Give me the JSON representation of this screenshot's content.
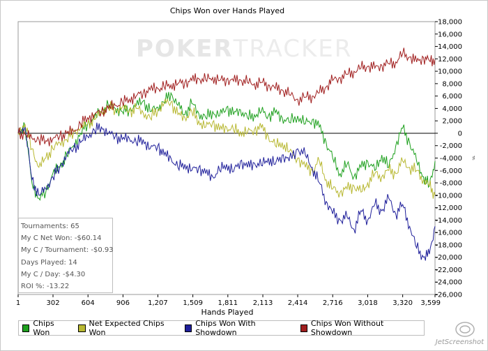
{
  "watermark": {
    "left": "POKER",
    "right": "TRACKER"
  },
  "chart_data": {
    "type": "line",
    "title": "Chips Won over Hands Played",
    "xlabel": "Hands Played",
    "ylabel": "",
    "xlim": [
      1,
      3599
    ],
    "ylim": [
      -26000,
      18000
    ],
    "x_ticks": [
      1,
      302,
      604,
      906,
      1207,
      1509,
      1811,
      2113,
      2414,
      2716,
      3018,
      3320,
      3599
    ],
    "x_tick_labels": [
      "1",
      "302",
      "604",
      "906",
      "1,207",
      "1,509",
      "1,811",
      "2,113",
      "2,414",
      "2,716",
      "3,018",
      "3,320",
      "3,599"
    ],
    "y_ticks": [
      18000,
      16000,
      14000,
      12000,
      10000,
      8000,
      6000,
      4000,
      2000,
      0,
      -2000,
      -4000,
      -6000,
      -8000,
      -10000,
      -12000,
      -14000,
      -16000,
      -18000,
      -20000,
      -22000,
      -24000,
      -26000
    ],
    "y_tick_labels": [
      "18,000",
      "16,000",
      "14,000",
      "12,000",
      "10,000",
      "8,000",
      "6,000",
      "4,000",
      "2,000",
      "0",
      "-2,000",
      "-4,000",
      "-6,000",
      "-8,000",
      "-10,000",
      "-12,000",
      "-14,000",
      "-16,000",
      "-18,000",
      "-20,000",
      "-22,000",
      "-24,000",
      "-26,000"
    ],
    "grid": false,
    "legend_position": "bottom",
    "series": [
      {
        "name": "Chips Won",
        "color": "#1ea01e",
        "x": [
          1,
          60,
          120,
          180,
          240,
          300,
          360,
          420,
          480,
          540,
          600,
          660,
          720,
          780,
          840,
          900,
          960,
          1020,
          1080,
          1140,
          1207,
          1260,
          1320,
          1380,
          1440,
          1500,
          1560,
          1620,
          1680,
          1740,
          1800,
          1860,
          1920,
          1980,
          2040,
          2100,
          2160,
          2220,
          2280,
          2340,
          2414,
          2480,
          2540,
          2600,
          2660,
          2716,
          2780,
          2840,
          2900,
          2960,
          3018,
          3080,
          3140,
          3200,
          3260,
          3320,
          3380,
          3440,
          3500,
          3550,
          3599
        ],
        "y": [
          0,
          1200,
          -8000,
          -10500,
          -9500,
          -6500,
          -5500,
          -3500,
          -2000,
          0,
          1500,
          2500,
          3500,
          4500,
          4000,
          3500,
          3800,
          4500,
          5200,
          3500,
          4200,
          5000,
          6500,
          4500,
          3000,
          4800,
          3200,
          2500,
          3500,
          2800,
          4200,
          3000,
          3800,
          2500,
          3000,
          3500,
          2800,
          3300,
          2500,
          1800,
          2800,
          1500,
          2200,
          1000,
          -1500,
          -4000,
          -6500,
          -5000,
          -7000,
          -5500,
          -4500,
          -6000,
          -3500,
          -5500,
          -2000,
          800,
          -1500,
          -4500,
          -7000,
          -8500,
          -4500
        ]
      },
      {
        "name": "Net Expected Chips Won",
        "color": "#b8b832",
        "x": [
          1,
          60,
          120,
          180,
          240,
          300,
          360,
          420,
          480,
          540,
          600,
          660,
          720,
          780,
          840,
          900,
          960,
          1020,
          1080,
          1140,
          1207,
          1260,
          1320,
          1380,
          1440,
          1500,
          1560,
          1620,
          1680,
          1740,
          1800,
          1860,
          1920,
          1980,
          2040,
          2100,
          2160,
          2220,
          2280,
          2340,
          2414,
          2480,
          2540,
          2600,
          2660,
          2716,
          2780,
          2840,
          2900,
          2960,
          3018,
          3080,
          3140,
          3200,
          3260,
          3320,
          3380,
          3440,
          3500,
          3550,
          3599
        ],
        "y": [
          0,
          1500,
          -2500,
          -5500,
          -4000,
          -2500,
          -1500,
          -1000,
          200,
          800,
          1500,
          2200,
          3500,
          4300,
          3800,
          4200,
          3500,
          4000,
          3300,
          2500,
          3800,
          4800,
          5000,
          3000,
          2500,
          3500,
          2000,
          1000,
          1800,
          500,
          1000,
          500,
          300,
          100,
          600,
          900,
          -500,
          -2000,
          -1500,
          -3000,
          -4000,
          -5500,
          -6000,
          -4500,
          -7500,
          -9000,
          -9500,
          -9000,
          -8500,
          -9500,
          -8000,
          -6500,
          -7000,
          -6000,
          -6500,
          -4500,
          -5500,
          -6000,
          -7500,
          -8500,
          -10000
        ]
      },
      {
        "name": "Chips Won With Showdown",
        "color": "#1f1f9a",
        "x": [
          1,
          60,
          120,
          180,
          240,
          300,
          360,
          420,
          480,
          540,
          600,
          660,
          720,
          780,
          840,
          900,
          960,
          1020,
          1080,
          1140,
          1207,
          1260,
          1320,
          1380,
          1440,
          1500,
          1560,
          1620,
          1680,
          1740,
          1800,
          1860,
          1920,
          1980,
          2040,
          2100,
          2160,
          2220,
          2280,
          2340,
          2414,
          2480,
          2540,
          2600,
          2660,
          2716,
          2780,
          2840,
          2900,
          2960,
          3018,
          3080,
          3140,
          3200,
          3260,
          3320,
          3380,
          3440,
          3500,
          3550,
          3599
        ],
        "y": [
          0,
          1000,
          -7500,
          -10000,
          -9000,
          -7000,
          -5500,
          -3500,
          -2500,
          -1500,
          -500,
          500,
          1000,
          0,
          -500,
          -1000,
          -800,
          -1500,
          -1000,
          -2500,
          -2000,
          -3500,
          -4000,
          -5500,
          -5000,
          -6000,
          -5500,
          -6500,
          -7000,
          -6000,
          -5000,
          -6200,
          -4500,
          -5500,
          -4800,
          -5200,
          -4000,
          -5000,
          -3500,
          -4500,
          -2500,
          -3500,
          -5500,
          -8000,
          -11000,
          -13000,
          -14000,
          -13500,
          -15500,
          -12500,
          -14000,
          -11500,
          -12500,
          -10500,
          -13000,
          -11500,
          -15000,
          -18500,
          -20000,
          -19500,
          -15000
        ]
      },
      {
        "name": "Chips Won Without Showdown",
        "color": "#a01e1e",
        "x": [
          1,
          60,
          120,
          180,
          240,
          300,
          360,
          420,
          480,
          540,
          600,
          660,
          720,
          780,
          840,
          900,
          960,
          1020,
          1080,
          1140,
          1207,
          1260,
          1320,
          1380,
          1440,
          1500,
          1560,
          1620,
          1680,
          1740,
          1800,
          1860,
          1920,
          1980,
          2040,
          2100,
          2160,
          2220,
          2280,
          2340,
          2414,
          2480,
          2540,
          2600,
          2660,
          2716,
          2780,
          2840,
          2900,
          2960,
          3018,
          3080,
          3140,
          3200,
          3260,
          3320,
          3380,
          3440,
          3500,
          3550,
          3599
        ],
        "y": [
          0,
          -200,
          -800,
          -1000,
          -1200,
          -900,
          -500,
          0,
          300,
          1500,
          2500,
          3000,
          3500,
          4000,
          4500,
          5000,
          5500,
          6000,
          6500,
          7000,
          7200,
          7500,
          7800,
          8000,
          8200,
          8500,
          8800,
          8600,
          9000,
          8500,
          8700,
          8400,
          8600,
          8200,
          8000,
          8200,
          7800,
          7200,
          7000,
          6200,
          5500,
          5800,
          6000,
          6500,
          7500,
          8500,
          9000,
          9500,
          10000,
          10500,
          10800,
          10500,
          11000,
          11200,
          11500,
          12800,
          12300,
          11500,
          12200,
          11700,
          11900
        ]
      }
    ],
    "annotations": [
      "Tournaments: 65",
      "My C Net Won: -$60.14",
      "My C / Tournament: -$0.93",
      "Days Played: 14",
      "My C / Day: -$4.30",
      "ROI %: -13.22"
    ]
  },
  "side_label": "♯",
  "screenshot_mark": "JetScreenshot"
}
